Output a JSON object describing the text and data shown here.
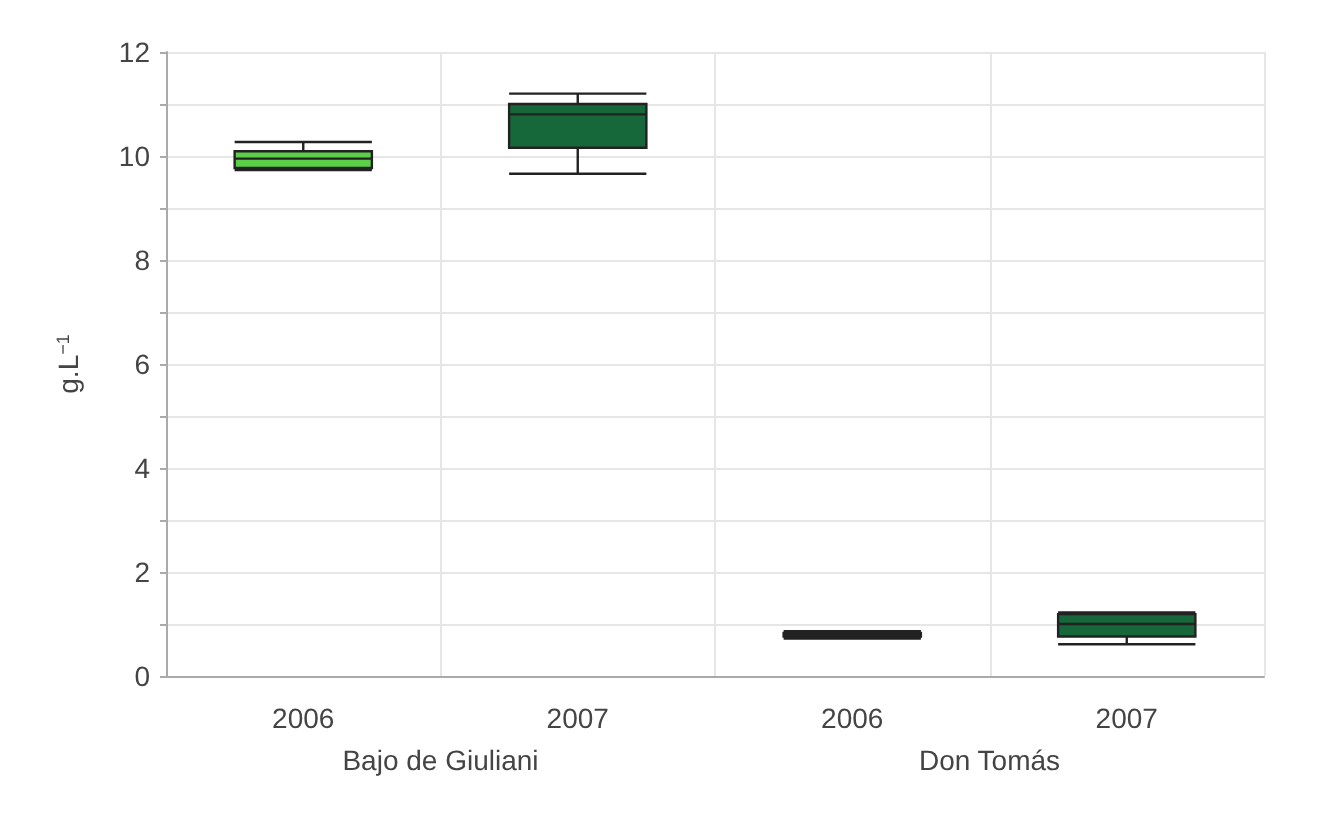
{
  "chart_data": {
    "type": "box",
    "ylabel": "g.L$^{−1}$",
    "categories": [
      "2006",
      "2007",
      "2006",
      "2007"
    ],
    "boxes": [
      {
        "low": 9.73,
        "q1": 9.77,
        "median": 9.95,
        "q3": 10.09,
        "high": 10.27
      },
      {
        "low": 9.66,
        "q1": 10.16,
        "median": 10.8,
        "q3": 11.0,
        "high": 11.2
      },
      {
        "low": 0.72,
        "q1": 0.76,
        "median": 0.8,
        "q3": 0.83,
        "high": 0.86
      },
      {
        "low": 0.61,
        "q1": 0.76,
        "median": 1.0,
        "q3": 1.19,
        "high": 1.22
      }
    ],
    "colors": [
      "#5ccf48",
      "#16683a",
      "#16683a",
      "#16683a"
    ],
    "ylim": [
      0,
      12
    ],
    "yticks": [
      0,
      {
        "value": 1,
        "label": null
      },
      2,
      {
        "value": 3,
        "label": null
      },
      4,
      {
        "value": 5,
        "label": null
      },
      6,
      {
        "value": 7,
        "label": null
      },
      8,
      {
        "value": 9,
        "label": null
      },
      10,
      {
        "value": 11,
        "label": null
      },
      12
    ],
    "grid": true,
    "annotations": [
      "Bajo de Giuliani",
      "Don Tomás"
    ]
  }
}
